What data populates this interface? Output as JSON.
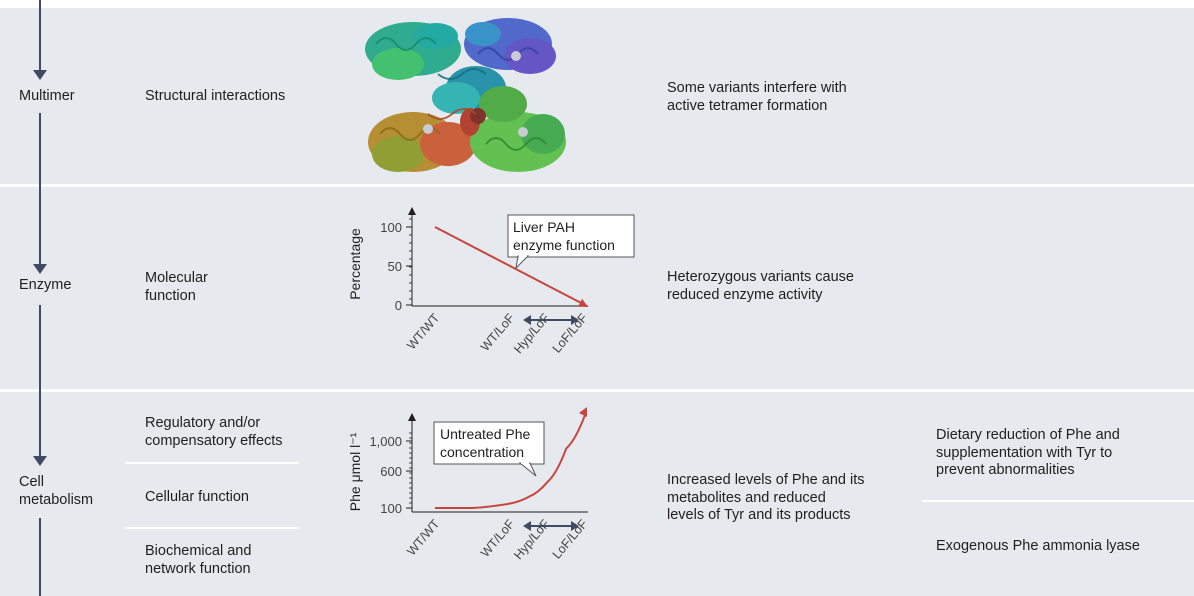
{
  "rows": {
    "multimer": {
      "level": "Multimer",
      "category": "Structural interactions",
      "description": "Some variants interfere with\nactive tetramer formation"
    },
    "enzyme": {
      "level": "Enzyme",
      "category": "Molecular\nfunction",
      "description": "Heterozygous variants cause\nreduced enzyme activity"
    },
    "cell": {
      "level": "Cell\nmetabolism",
      "categories": [
        "Regulatory and/or\ncompensatory effects",
        "Cellular function",
        "Biochemical and\nnetwork function"
      ],
      "description": "Increased levels of Phe and its\nmetabolites and reduced\nlevels of Tyr and its products",
      "treatments": [
        "Dietary reduction of Phe and\nsupplementation with Tyr to\nprevent abnormalities",
        "Exogenous Phe ammonia lyase"
      ]
    }
  },
  "chart_data": [
    {
      "type": "line",
      "ylabel": "Percentage",
      "yticks": [
        "100",
        "50",
        "0"
      ],
      "ylim": [
        0,
        100
      ],
      "categories": [
        "WT/WT",
        "WT/LoF",
        "Hyp/LoF",
        "LoF/LoF"
      ],
      "x": [
        0,
        2,
        3,
        4
      ],
      "values": [
        100,
        50,
        25,
        0
      ],
      "annotation": "Liver PAH\nenzyme function",
      "line_color": "#c8453f"
    },
    {
      "type": "line",
      "ylabel": "Phe μmol l⁻¹",
      "yticks": [
        "1,000",
        "600",
        "100"
      ],
      "categories": [
        "WT/WT",
        "WT/LoF",
        "Hyp/LoF",
        "LoF/LoF"
      ],
      "x": [
        0,
        1,
        2,
        2.5,
        3,
        3.5,
        4
      ],
      "values": [
        100,
        100,
        160,
        250,
        450,
        900,
        1350
      ],
      "annotation": "Untreated Phe\nconcentration",
      "line_color": "#c8453f"
    }
  ],
  "colors": {
    "band": "#e6e9ee",
    "arrow": "#3f4a63",
    "accent": "#c8453f"
  }
}
